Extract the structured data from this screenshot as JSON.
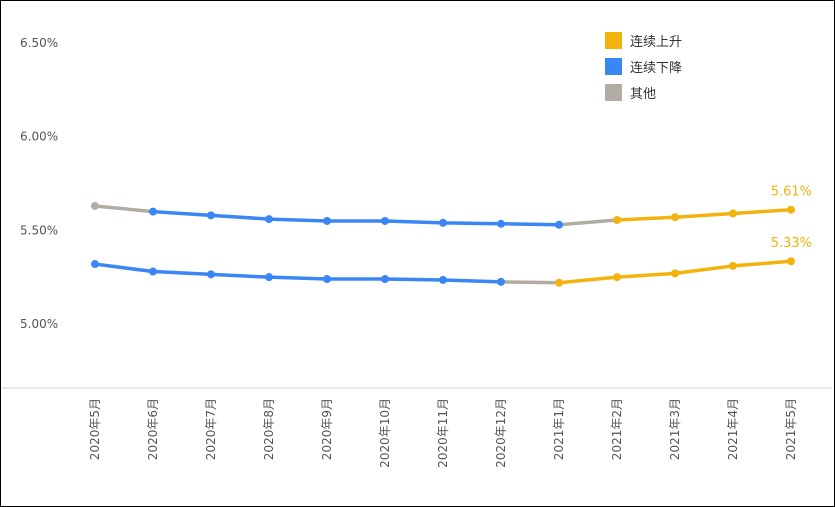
{
  "chart_data": {
    "type": "line",
    "x": [
      "2020年5月",
      "2020年6月",
      "2020年7月",
      "2020年8月",
      "2020年9月",
      "2020年10月",
      "2020年11月",
      "2020年12月",
      "2021年1月",
      "2021年2月",
      "2021年3月",
      "2021年4月",
      "2021年5月"
    ],
    "y_ticks": [
      "6.50%",
      "6.00%",
      "5.50%",
      "5.00%"
    ],
    "ylim": [
      4.65,
      6.6
    ],
    "grid": false,
    "legend_position": "top-right",
    "legend": [
      {
        "label": "连续上升",
        "color": "#f2b30e"
      },
      {
        "label": "连续下降",
        "color": "#3a86f5"
      },
      {
        "label": "其他",
        "color": "#b3aca4"
      }
    ],
    "colors": {
      "up": "#f2b30e",
      "down": "#3a86f5",
      "other": "#b3aca4"
    },
    "series": [
      {
        "values": [
          5.63,
          5.6,
          5.58,
          5.56,
          5.55,
          5.55,
          5.54,
          5.535,
          5.53,
          5.555,
          5.57,
          5.59,
          5.61
        ],
        "segment_trend": [
          "other",
          "down",
          "down",
          "down",
          "down",
          "down",
          "down",
          "down",
          "other",
          "up",
          "up",
          "up"
        ],
        "end_label": "5.61%"
      },
      {
        "values": [
          5.32,
          5.28,
          5.265,
          5.25,
          5.24,
          5.24,
          5.235,
          5.225,
          5.22,
          5.25,
          5.27,
          5.31,
          5.335
        ],
        "segment_trend": [
          "down",
          "down",
          "down",
          "down",
          "down",
          "down",
          "down",
          "other",
          "up",
          "up",
          "up",
          "up"
        ],
        "end_label": "5.33%"
      }
    ]
  }
}
